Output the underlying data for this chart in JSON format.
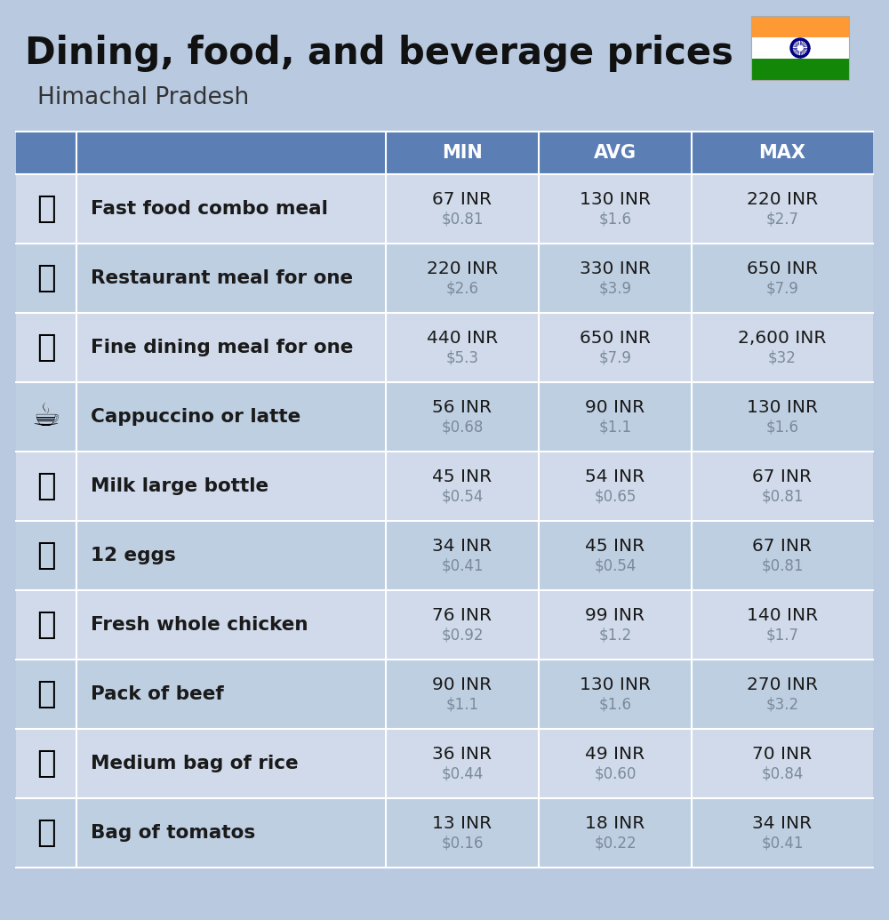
{
  "title": "Dining, food, and beverage prices",
  "subtitle": "Himachal Pradesh",
  "bg_color": "#b8c9e0",
  "header_color": "#5b7fb5",
  "row_color_light": "#d0daea",
  "row_color_dark": "#bfcfe2",
  "header_text_color": "#ffffff",
  "item_text_color": "#1a1a1a",
  "value_inr_color": "#1a1a1a",
  "value_usd_color": "#7a8a9a",
  "separator_color": "#ffffff",
  "columns": [
    "MIN",
    "AVG",
    "MAX"
  ],
  "rows": [
    {
      "name": "Fast food combo meal",
      "min_inr": "67 INR",
      "min_usd": "$0.81",
      "avg_inr": "130 INR",
      "avg_usd": "$1.6",
      "max_inr": "220 INR",
      "max_usd": "$2.7"
    },
    {
      "name": "Restaurant meal for one",
      "min_inr": "220 INR",
      "min_usd": "$2.6",
      "avg_inr": "330 INR",
      "avg_usd": "$3.9",
      "max_inr": "650 INR",
      "max_usd": "$7.9"
    },
    {
      "name": "Fine dining meal for one",
      "min_inr": "440 INR",
      "min_usd": "$5.3",
      "avg_inr": "650 INR",
      "avg_usd": "$7.9",
      "max_inr": "2,600 INR",
      "max_usd": "$32"
    },
    {
      "name": "Cappuccino or latte",
      "min_inr": "56 INR",
      "min_usd": "$0.68",
      "avg_inr": "90 INR",
      "avg_usd": "$1.1",
      "max_inr": "130 INR",
      "max_usd": "$1.6"
    },
    {
      "name": "Milk large bottle",
      "min_inr": "45 INR",
      "min_usd": "$0.54",
      "avg_inr": "54 INR",
      "avg_usd": "$0.65",
      "max_inr": "67 INR",
      "max_usd": "$0.81"
    },
    {
      "name": "12 eggs",
      "min_inr": "34 INR",
      "min_usd": "$0.41",
      "avg_inr": "45 INR",
      "avg_usd": "$0.54",
      "max_inr": "67 INR",
      "max_usd": "$0.81"
    },
    {
      "name": "Fresh whole chicken",
      "min_inr": "76 INR",
      "min_usd": "$0.92",
      "avg_inr": "99 INR",
      "avg_usd": "$1.2",
      "max_inr": "140 INR",
      "max_usd": "$1.7"
    },
    {
      "name": "Pack of beef",
      "min_inr": "90 INR",
      "min_usd": "$1.1",
      "avg_inr": "130 INR",
      "avg_usd": "$1.6",
      "max_inr": "270 INR",
      "max_usd": "$3.2"
    },
    {
      "name": "Medium bag of rice",
      "min_inr": "36 INR",
      "min_usd": "$0.44",
      "avg_inr": "49 INR",
      "avg_usd": "$0.60",
      "max_inr": "70 INR",
      "max_usd": "$0.84"
    },
    {
      "name": "Bag of tomatos",
      "min_inr": "13 INR",
      "min_usd": "$0.16",
      "avg_inr": "18 INR",
      "avg_usd": "$0.22",
      "max_inr": "34 INR",
      "max_usd": "$0.41"
    }
  ],
  "flag_colors": [
    "#FF9933",
    "#FFFFFF",
    "#138808"
  ],
  "emoji_list": [
    "🍔",
    "🍳",
    "🍽",
    "☕",
    "🥛",
    "🥚",
    "🐔",
    "🥩",
    "🍚",
    "🍅"
  ]
}
